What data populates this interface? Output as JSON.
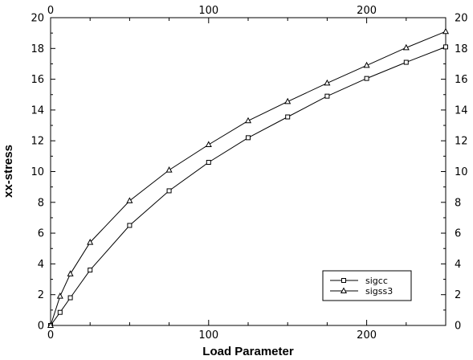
{
  "chart_data": {
    "type": "line",
    "xlabel": "Load Parameter",
    "ylabel": "xx-stress",
    "xlim": [
      0,
      250
    ],
    "ylim": [
      0,
      20
    ],
    "x_ticks": [
      0,
      100,
      200
    ],
    "y_ticks": [
      0,
      2,
      4,
      6,
      8,
      10,
      12,
      14,
      16,
      18,
      20
    ],
    "x_tick_labels": [
      "0",
      "100",
      "200"
    ],
    "y_tick_labels": [
      "0",
      "2",
      "4",
      "6",
      "8",
      "10",
      "12",
      "14",
      "16",
      "18",
      "20"
    ],
    "x_axis_on_top": true,
    "y_axis_on_right": true,
    "grid": false,
    "legend_position": "bottom-right",
    "series": [
      {
        "name": "sigcc",
        "marker": "square",
        "color": "#000000",
        "x": [
          0,
          6,
          12.5,
          25,
          50,
          75,
          100,
          125,
          150,
          175,
          200,
          225,
          250
        ],
        "y": [
          0,
          0.85,
          1.8,
          3.6,
          6.5,
          8.75,
          10.6,
          12.2,
          13.55,
          14.9,
          16.05,
          17.1,
          18.1
        ]
      },
      {
        "name": "sigss3",
        "marker": "triangle",
        "color": "#000000",
        "x": [
          0,
          6,
          12.5,
          25,
          50,
          75,
          100,
          125,
          150,
          175,
          200,
          225,
          250
        ],
        "y": [
          0,
          1.9,
          3.35,
          5.4,
          8.1,
          10.1,
          11.75,
          13.3,
          14.55,
          15.75,
          16.9,
          18.05,
          19.1
        ]
      }
    ]
  }
}
